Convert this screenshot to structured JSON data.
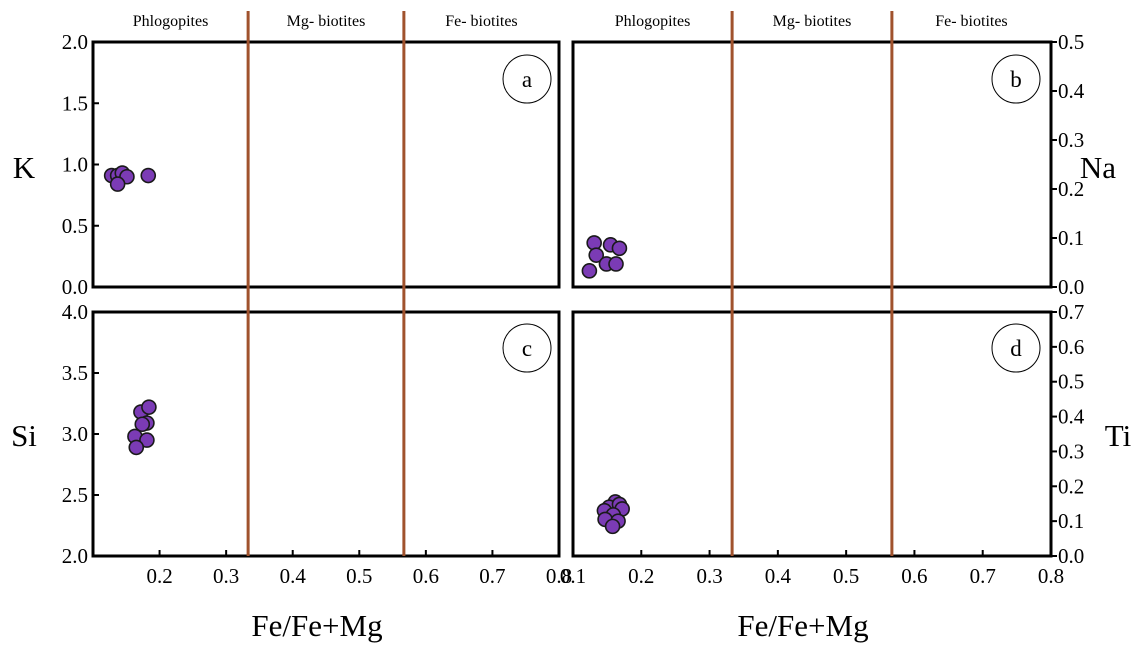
{
  "chart_data": [
    {
      "panel": "a",
      "type": "scatter",
      "ylabel": "K",
      "ylim": [
        0,
        2.0
      ],
      "yticks": [
        "0.0",
        "0.5",
        "1.0",
        "1.5",
        "2.0"
      ],
      "yaxis_side": "left",
      "xlim": [
        0.1,
        0.8
      ],
      "region_labels": [
        "Phlogopites",
        "Mg- biotites",
        "Fe- biotites"
      ],
      "boundaries": [
        0.333,
        0.567
      ],
      "boundary_color": "#A0522D",
      "marker_color": "#7B3BB5",
      "points": [
        [
          0.128,
          0.91
        ],
        [
          0.137,
          0.91
        ],
        [
          0.144,
          0.93
        ],
        [
          0.151,
          0.9
        ],
        [
          0.137,
          0.84
        ],
        [
          0.183,
          0.91
        ]
      ]
    },
    {
      "panel": "b",
      "type": "scatter",
      "ylabel": "Na",
      "ylim": [
        0,
        0.5
      ],
      "yticks": [
        "0.0",
        "0.1",
        "0.2",
        "0.3",
        "0.4",
        "0.5"
      ],
      "yaxis_side": "right",
      "xlim": [
        0.1,
        0.8
      ],
      "region_labels": [
        "Phlogopites",
        "Mg- biotites",
        "Fe- biotites"
      ],
      "boundaries": [
        0.333,
        0.567
      ],
      "boundary_color": "#A0522D",
      "marker_color": "#7B3BB5",
      "points": [
        [
          0.131,
          0.09
        ],
        [
          0.155,
          0.086
        ],
        [
          0.168,
          0.079
        ],
        [
          0.134,
          0.065
        ],
        [
          0.149,
          0.047
        ],
        [
          0.163,
          0.047
        ],
        [
          0.124,
          0.033
        ]
      ]
    },
    {
      "panel": "c",
      "type": "scatter",
      "ylabel": "Si",
      "ylim": [
        2.0,
        4.0
      ],
      "yticks": [
        "2.0",
        "2.5",
        "3.0",
        "3.5",
        "4.0"
      ],
      "yaxis_side": "left",
      "xlim": [
        0.1,
        0.8
      ],
      "xticks": [
        "0.2",
        "0.3",
        "0.4",
        "0.5",
        "0.6",
        "0.7",
        "0.8"
      ],
      "xlabel": "Fe/Fe+Mg",
      "boundaries": [
        0.333,
        0.567
      ],
      "boundary_color": "#A0522D",
      "marker_color": "#7B3BB5",
      "points": [
        [
          0.172,
          3.18
        ],
        [
          0.184,
          3.22
        ],
        [
          0.181,
          3.09
        ],
        [
          0.174,
          3.08
        ],
        [
          0.163,
          2.98
        ],
        [
          0.181,
          2.95
        ],
        [
          0.165,
          2.89
        ]
      ]
    },
    {
      "panel": "d",
      "type": "scatter",
      "ylabel": "Ti",
      "ylim": [
        0,
        0.7
      ],
      "yticks": [
        "0.0",
        "0.1",
        "0.2",
        "0.3",
        "0.4",
        "0.5",
        "0.6",
        "0.7"
      ],
      "yaxis_side": "right",
      "xlim": [
        0.1,
        0.8
      ],
      "xticks": [
        "0.1",
        "0.2",
        "0.3",
        "0.4",
        "0.5",
        "0.6",
        "0.7",
        "0.8"
      ],
      "xlabel": "Fe/Fe+Mg",
      "boundaries": [
        0.333,
        0.567
      ],
      "boundary_color": "#A0522D",
      "marker_color": "#7B3BB5",
      "points": [
        [
          0.162,
          0.155
        ],
        [
          0.153,
          0.14
        ],
        [
          0.168,
          0.148
        ],
        [
          0.146,
          0.13
        ],
        [
          0.172,
          0.135
        ],
        [
          0.159,
          0.118
        ],
        [
          0.147,
          0.105
        ],
        [
          0.166,
          0.1
        ],
        [
          0.158,
          0.085
        ]
      ]
    }
  ]
}
